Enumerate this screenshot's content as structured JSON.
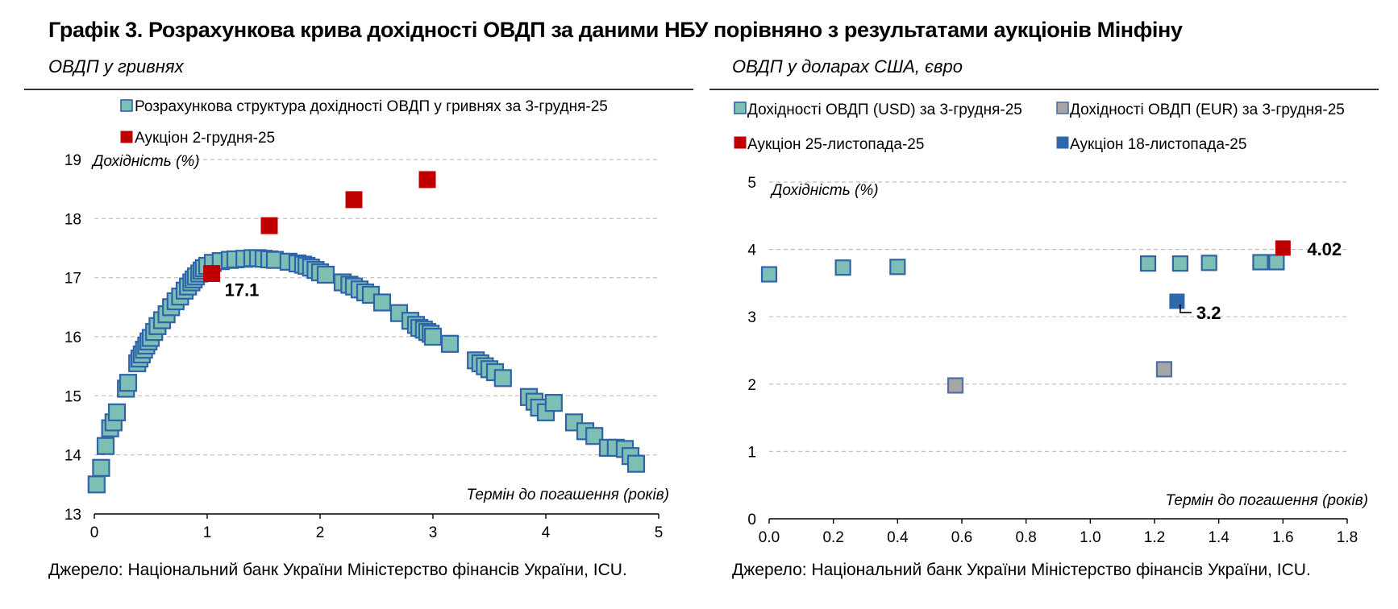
{
  "header": {
    "title": "Графік 3. Розрахункова крива дохідності ОВДП за даними НБУ порівняно з результатами аукціонів Мінфіну"
  },
  "left_panel": {
    "subtitle": "ОВДП у гривнях",
    "source": "Джерело: Національний банк України Міністерство фінансів України, ICU."
  },
  "right_panel": {
    "subtitle": "ОВДП у доларах США, євро",
    "source": "Джерело: Національний банк України Міністерство фінансів України, ICU."
  },
  "colors": {
    "teal_fill": "#7dbfb5",
    "teal_stroke": "#2f64a8",
    "red": "#c00000",
    "blue": "#2f68aa",
    "gray_fill": "#a6a6a6",
    "gray_stroke": "#4f6fa5",
    "grid": "#bfbfbf"
  },
  "chart_data": [
    {
      "type": "scatter",
      "ylabel": "Дохідність (%)",
      "xlabel": "Термін до погашення (років)",
      "xlim": [
        0,
        5
      ],
      "ylim": [
        13,
        19
      ],
      "xticks": [
        0,
        1,
        2,
        3,
        4,
        5
      ],
      "yticks": [
        13,
        14,
        15,
        16,
        17,
        18,
        19
      ],
      "grid": "horizontal dashed",
      "legend_position": "top",
      "series": [
        {
          "name": "Розрахункова структура дохідності ОВДП у гривнях за 3-грудня-25",
          "marker": "teal",
          "points": [
            [
              0.02,
              13.5
            ],
            [
              0.06,
              13.78
            ],
            [
              0.1,
              14.15
            ],
            [
              0.14,
              14.45
            ],
            [
              0.17,
              14.55
            ],
            [
              0.2,
              14.72
            ],
            [
              0.28,
              15.12
            ],
            [
              0.3,
              15.22
            ],
            [
              0.38,
              15.55
            ],
            [
              0.4,
              15.63
            ],
            [
              0.42,
              15.7
            ],
            [
              0.44,
              15.78
            ],
            [
              0.46,
              15.85
            ],
            [
              0.48,
              15.92
            ],
            [
              0.5,
              15.98
            ],
            [
              0.53,
              16.08
            ],
            [
              0.56,
              16.18
            ],
            [
              0.6,
              16.28
            ],
            [
              0.64,
              16.38
            ],
            [
              0.68,
              16.5
            ],
            [
              0.72,
              16.6
            ],
            [
              0.76,
              16.68
            ],
            [
              0.8,
              16.78
            ],
            [
              0.83,
              16.85
            ],
            [
              0.86,
              16.92
            ],
            [
              0.88,
              16.97
            ],
            [
              0.9,
              17.02
            ],
            [
              0.93,
              17.07
            ],
            [
              0.95,
              17.12
            ],
            [
              0.97,
              17.16
            ],
            [
              1.0,
              17.2
            ],
            [
              1.05,
              17.25
            ],
            [
              1.12,
              17.28
            ],
            [
              1.2,
              17.3
            ],
            [
              1.25,
              17.31
            ],
            [
              1.33,
              17.32
            ],
            [
              1.4,
              17.33
            ],
            [
              1.45,
              17.33
            ],
            [
              1.5,
              17.32
            ],
            [
              1.55,
              17.31
            ],
            [
              1.6,
              17.3
            ],
            [
              1.72,
              17.27
            ],
            [
              1.8,
              17.24
            ],
            [
              1.85,
              17.22
            ],
            [
              1.88,
              17.2
            ],
            [
              1.92,
              17.17
            ],
            [
              1.96,
              17.13
            ],
            [
              2.0,
              17.09
            ],
            [
              2.05,
              17.05
            ],
            [
              2.2,
              16.92
            ],
            [
              2.26,
              16.88
            ],
            [
              2.3,
              16.85
            ],
            [
              2.35,
              16.8
            ],
            [
              2.4,
              16.75
            ],
            [
              2.45,
              16.71
            ],
            [
              2.55,
              16.58
            ],
            [
              2.7,
              16.4
            ],
            [
              2.8,
              16.27
            ],
            [
              2.85,
              16.2
            ],
            [
              2.88,
              16.15
            ],
            [
              2.92,
              16.12
            ],
            [
              2.95,
              16.08
            ],
            [
              2.98,
              16.05
            ],
            [
              3.0,
              16.0
            ],
            [
              3.15,
              15.88
            ],
            [
              3.38,
              15.6
            ],
            [
              3.42,
              15.55
            ],
            [
              3.46,
              15.5
            ],
            [
              3.5,
              15.45
            ],
            [
              3.55,
              15.4
            ],
            [
              3.62,
              15.3
            ],
            [
              3.85,
              14.98
            ],
            [
              3.9,
              14.9
            ],
            [
              3.94,
              14.8
            ],
            [
              4.0,
              14.72
            ],
            [
              4.07,
              14.88
            ],
            [
              4.25,
              14.55
            ],
            [
              4.35,
              14.4
            ],
            [
              4.43,
              14.32
            ],
            [
              4.55,
              14.12
            ],
            [
              4.62,
              14.12
            ],
            [
              4.7,
              14.1
            ],
            [
              4.75,
              13.98
            ],
            [
              4.8,
              13.85
            ]
          ]
        },
        {
          "name": "Аукціон 2-грудня-25",
          "marker": "red",
          "points": [
            [
              1.04,
              17.07
            ],
            [
              1.55,
              17.88
            ],
            [
              2.3,
              18.32
            ],
            [
              2.95,
              18.66
            ]
          ]
        }
      ],
      "annotations": [
        {
          "text": "17.1",
          "x": 1.04,
          "y": 17.07
        }
      ]
    },
    {
      "type": "scatter",
      "ylabel": "Дохідність (%)",
      "xlabel": "Термін до погашення (років)",
      "xlim": [
        0,
        1.8
      ],
      "ylim": [
        0,
        5
      ],
      "xticks": [
        "0.0",
        "0.2",
        "0.4",
        "0.6",
        "0.8",
        "1.0",
        "1.2",
        "1.4",
        "1.6",
        "1.8"
      ],
      "yticks": [
        0,
        1,
        2,
        3,
        4,
        5
      ],
      "grid": "horizontal dashed",
      "legend_position": "top",
      "series": [
        {
          "name": "Дохідності ОВДП (USD) за 3-грудня-25",
          "marker": "teal",
          "points": [
            [
              0.0,
              3.63
            ],
            [
              0.23,
              3.73
            ],
            [
              0.4,
              3.74
            ],
            [
              1.18,
              3.79
            ],
            [
              1.28,
              3.79
            ],
            [
              1.37,
              3.8
            ],
            [
              1.53,
              3.81
            ],
            [
              1.58,
              3.81
            ]
          ]
        },
        {
          "name": "Дохідності ОВДП (EUR) за 3-грудня-25",
          "marker": "gray",
          "points": [
            [
              0.58,
              1.98
            ],
            [
              1.23,
              2.22
            ]
          ]
        },
        {
          "name": "Аукціон 25-листопада-25",
          "marker": "red",
          "points": [
            [
              1.6,
              4.02
            ]
          ]
        },
        {
          "name": "Аукціон 18-листопада-25",
          "marker": "blue",
          "points": [
            [
              1.27,
              3.23
            ]
          ]
        }
      ],
      "annotations": [
        {
          "text": "4.02",
          "x": 1.6,
          "y": 4.02
        },
        {
          "text": "3.2",
          "x": 1.27,
          "y": 3.23
        }
      ]
    }
  ]
}
